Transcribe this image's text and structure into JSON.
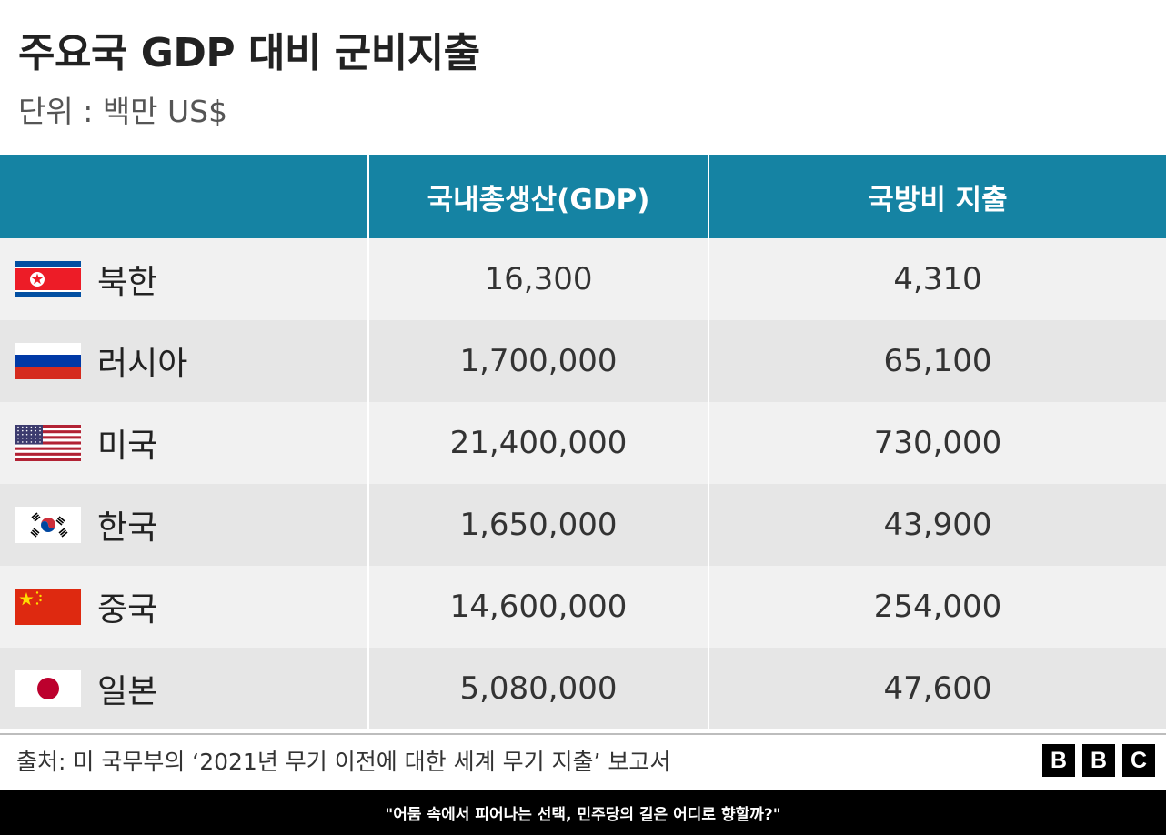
{
  "title": "주요국 GDP 대비 군비지출",
  "subtitle": "단위 : 백만 US$",
  "chart_data": {
    "type": "table",
    "title": "주요국 GDP 대비 군비지출",
    "subtitle": "단위 : 백만 US$",
    "columns": [
      "",
      "국내총생산(GDP)",
      "국방비 지출"
    ],
    "rows": [
      {
        "country": "북한",
        "flag": "north-korea-flag",
        "gdp": "16,300",
        "defense": "4,310"
      },
      {
        "country": "러시아",
        "flag": "russia-flag",
        "gdp": "1,700,000",
        "defense": "65,100"
      },
      {
        "country": "미국",
        "flag": "usa-flag",
        "gdp": "21,400,000",
        "defense": "730,000"
      },
      {
        "country": "한국",
        "flag": "south-korea-flag",
        "gdp": "1,650,000",
        "defense": "43,900"
      },
      {
        "country": "중국",
        "flag": "china-flag",
        "gdp": "14,600,000",
        "defense": "254,000"
      },
      {
        "country": "일본",
        "flag": "japan-flag",
        "gdp": "5,080,000",
        "defense": "47,600"
      }
    ]
  },
  "footer": {
    "source": "출처: 미 국무부의 ‘2021년 무기 이전에 대한 세계 무기 지출’ 보고서",
    "logo_letters": [
      "B",
      "B",
      "C"
    ],
    "caption": "\"어둠 속에서 피어나는 선택, 민주당의 길은 어디로 향할까?\""
  },
  "colors": {
    "header": "#1583a3",
    "row_light": "#f1f1f1",
    "row_dark": "#e6e6e6"
  }
}
